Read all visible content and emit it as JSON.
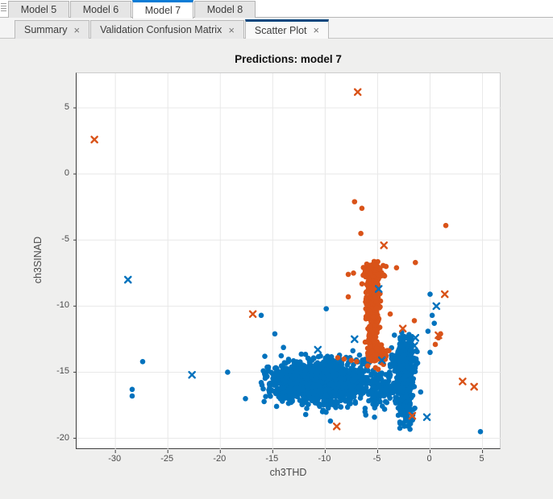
{
  "model_tabs": {
    "items": [
      {
        "label": "Model 5",
        "active": false
      },
      {
        "label": "Model 6",
        "active": false
      },
      {
        "label": "Model 7",
        "active": true
      },
      {
        "label": "Model 8",
        "active": false
      }
    ],
    "active_accent": "#0b7cd6"
  },
  "document_tabs": {
    "close_glyph": "×",
    "items": [
      {
        "label": "Summary",
        "active": false
      },
      {
        "label": "Validation Confusion Matrix",
        "active": false
      },
      {
        "label": "Scatter Plot",
        "active": true
      }
    ],
    "active_accent": "#06467d"
  },
  "chart_data": {
    "type": "scatter",
    "title": "Predictions: model 7",
    "xlabel": "ch3THD",
    "ylabel": "ch3SINAD",
    "xlim": [
      -33.7,
      6.8
    ],
    "ylim": [
      -20.88,
      7.62
    ],
    "xticks": [
      -30,
      -25,
      -20,
      -15,
      -10,
      -5,
      0,
      5
    ],
    "yticks": [
      5,
      0,
      -5,
      -10,
      -15,
      -20
    ],
    "grid": true,
    "grid_color": "#e8e8e8",
    "marker_radius": 3.3,
    "x_marker_arm": 3.6,
    "series": [
      {
        "name": "class-blue-correct",
        "marker": "dot",
        "color": "#0072BD",
        "clusters": [
          {
            "n": 1250,
            "cx": -10.4,
            "cy": -15.7,
            "sx": 2.35,
            "sy": 0.78,
            "clipx": [
              -15.8,
              -4.6
            ],
            "clipy": [
              -17.8,
              -13.6
            ]
          },
          {
            "n": 140,
            "cx": -10.4,
            "cy": -15.7,
            "sx": 2.9,
            "sy": 1.15,
            "clipx": [
              -16.6,
              -4.2
            ],
            "clipy": [
              -18.6,
              -13.0
            ]
          },
          {
            "n": 110,
            "cx": -4.3,
            "cy": -16.3,
            "sx": 0.75,
            "sy": 0.75,
            "clipx": [
              -5.6,
              -3.0
            ],
            "clipy": [
              -18.3,
              -14.4
            ]
          },
          {
            "n": 400,
            "cx": -2.35,
            "cy": -15.4,
            "sx": 0.42,
            "sy": 1.85,
            "clipx": [
              -3.4,
              -1.3
            ],
            "clipy": [
              -19.4,
              -12.1
            ]
          },
          {
            "n": 85,
            "cx": -2.5,
            "cy": -13.9,
            "sx": 0.85,
            "sy": 0.42,
            "clipx": [
              -3.9,
              -1.1
            ],
            "clipy": [
              -14.9,
              -12.9
            ]
          }
        ],
        "points": [
          [
            -27.4,
            -14.2
          ],
          [
            -19.3,
            -15.0
          ],
          [
            -28.4,
            -16.3
          ],
          [
            -28.4,
            -16.8
          ],
          [
            -17.6,
            -17.0
          ],
          [
            -15.9,
            -14.9
          ],
          [
            -14.8,
            -12.1
          ],
          [
            -16.1,
            -10.7
          ],
          [
            -9.9,
            -10.2
          ],
          [
            -9.5,
            -18.7
          ],
          [
            -6.2,
            -18.0
          ],
          [
            -5.3,
            -18.4
          ],
          [
            4.8,
            -19.5
          ],
          [
            0.0,
            -9.1
          ],
          [
            0.2,
            -10.7
          ],
          [
            0.4,
            -11.3
          ],
          [
            -0.2,
            -11.9
          ],
          [
            0.0,
            -13.5
          ],
          [
            -0.9,
            -16.5
          ],
          [
            -3.4,
            -12.2
          ],
          [
            -2.7,
            -12.0
          ]
        ]
      },
      {
        "name": "class-orange-correct",
        "marker": "dot",
        "color": "#D95319",
        "clusters": [
          {
            "n": 360,
            "cx": -5.45,
            "cy": -9.5,
            "sx": 0.3,
            "sy": 1.8,
            "clipx": [
              -6.2,
              -4.65
            ],
            "clipy": [
              -14.2,
              -6.9
            ]
          },
          {
            "n": 80,
            "cx": -5.4,
            "cy": -7.5,
            "sx": 0.55,
            "sy": 0.5,
            "clipx": [
              -6.7,
              -4.3
            ],
            "clipy": [
              -8.7,
              -6.6
            ]
          },
          {
            "n": 80,
            "cx": -5.0,
            "cy": -13.6,
            "sx": 0.5,
            "sy": 0.6,
            "clipx": [
              -6.2,
              -3.9
            ],
            "clipy": [
              -14.8,
              -12.4
            ]
          }
        ],
        "points": [
          [
            -7.2,
            -2.1
          ],
          [
            -6.5,
            -2.6
          ],
          [
            -6.6,
            -4.5
          ],
          [
            1.5,
            -3.9
          ],
          [
            -1.4,
            -6.7
          ],
          [
            -3.2,
            -7.1
          ],
          [
            -4.2,
            -7.0
          ],
          [
            -7.8,
            -7.6
          ],
          [
            -7.3,
            -7.5
          ],
          [
            -7.8,
            -9.3
          ],
          [
            -3.8,
            -10.6
          ],
          [
            -1.5,
            -11.1
          ],
          [
            1.0,
            -12.1
          ],
          [
            0.5,
            -12.9
          ],
          [
            0.8,
            -12.4
          ],
          [
            -8.8,
            -13.9
          ],
          [
            -8.2,
            -14.0
          ],
          [
            -7.5,
            -14.1
          ],
          [
            -7.0,
            -14.2
          ]
        ]
      },
      {
        "name": "class-blue-incorrect",
        "marker": "x",
        "color": "#0072BD",
        "points": [
          [
            -28.8,
            -8.0
          ],
          [
            -22.7,
            -15.2
          ],
          [
            -10.7,
            -13.3
          ],
          [
            -7.2,
            -12.5
          ],
          [
            -4.9,
            -8.7
          ],
          [
            -4.6,
            -14.1
          ],
          [
            -1.4,
            -12.4
          ],
          [
            -1.5,
            -13.0
          ],
          [
            -0.3,
            -18.4
          ],
          [
            0.6,
            -10.0
          ]
        ]
      },
      {
        "name": "class-orange-incorrect",
        "marker": "x",
        "color": "#D95319",
        "points": [
          [
            -32.0,
            2.6
          ],
          [
            -6.9,
            6.2
          ],
          [
            -16.9,
            -10.6
          ],
          [
            -4.4,
            -5.4
          ],
          [
            1.4,
            -9.1
          ],
          [
            -2.6,
            -11.7
          ],
          [
            0.8,
            -12.2
          ],
          [
            3.1,
            -15.7
          ],
          [
            4.2,
            -16.1
          ],
          [
            -1.7,
            -18.3
          ],
          [
            -8.9,
            -19.1
          ]
        ]
      }
    ]
  }
}
